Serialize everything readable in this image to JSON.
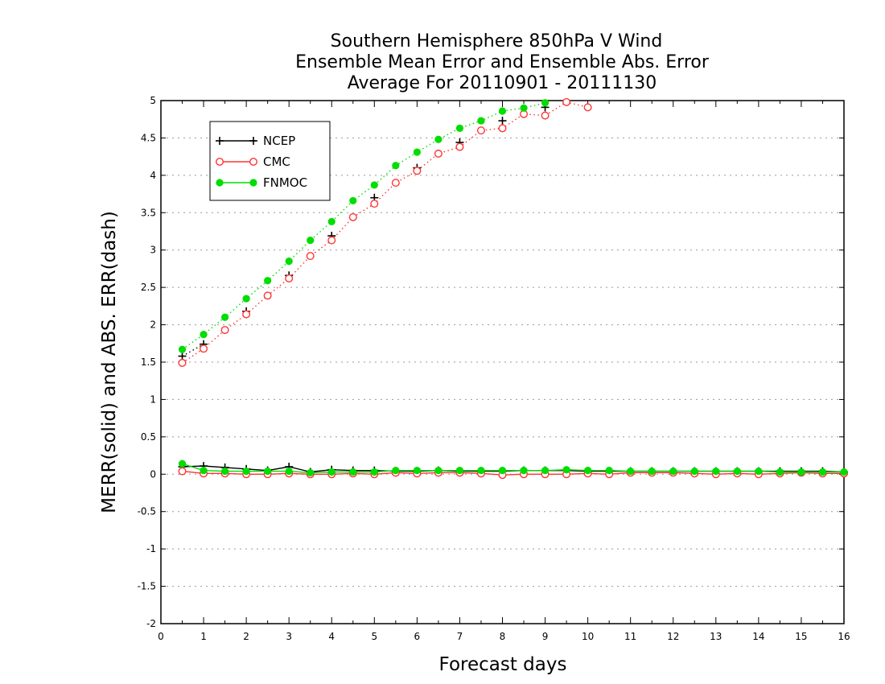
{
  "chart_data": {
    "type": "line",
    "title_lines": [
      "Southern Hemisphere 850hPa V Wind",
      "Ensemble Mean Error and Ensemble Abs. Error",
      "Average For 20110901 - 20111130"
    ],
    "xlabel": "Forecast days",
    "ylabel": "MERR(solid) and ABS. ERR(dash)",
    "xlim": [
      0,
      16
    ],
    "ylim": [
      -2,
      5
    ],
    "x_ticks": [
      "0",
      "1",
      "2",
      "3",
      "4",
      "5",
      "6",
      "7",
      "8",
      "9",
      "10",
      "11",
      "12",
      "13",
      "14",
      "15",
      "16"
    ],
    "y_ticks": [
      "5",
      "4.5",
      "4",
      "3.5",
      "3",
      "2.5",
      "2",
      "1.5",
      "1",
      "0.5",
      "0",
      "-0.5",
      "-1",
      "-1.5",
      "-2"
    ],
    "grid": true,
    "legend_position": "top-left",
    "x": [
      0.5,
      1,
      1.5,
      2,
      2.5,
      3,
      3.5,
      4,
      4.5,
      5,
      5.5,
      6,
      6.5,
      7,
      7.5,
      8,
      8.5,
      9,
      9.5,
      10,
      10.5,
      11,
      11.5,
      12,
      12.5,
      13,
      13.5,
      14,
      14.5,
      15,
      15.5,
      16
    ],
    "series": [
      {
        "name": "NCEP",
        "color": "#000000",
        "marker": "plus",
        "merr": [
          0.1,
          0.11,
          0.09,
          0.07,
          0.05,
          0.1,
          0.03,
          0.06,
          0.05,
          0.05,
          0.04,
          0.04,
          0.05,
          0.04,
          0.04,
          0.04,
          0.05,
          0.05,
          0.05,
          0.04,
          0.04,
          0.04,
          0.04,
          0.04,
          0.04,
          0.04,
          0.04,
          0.04,
          0.04,
          0.04,
          0.04,
          0.03
        ],
        "abs_err": [
          1.58,
          1.74,
          null,
          2.18,
          null,
          2.66,
          null,
          3.19,
          null,
          3.7,
          null,
          4.1,
          null,
          4.44,
          null,
          4.73,
          null,
          4.91,
          null,
          null,
          null,
          null,
          null,
          null,
          null,
          null,
          null,
          null,
          null,
          null,
          null,
          null
        ]
      },
      {
        "name": "CMC",
        "color": "#ff3333",
        "marker": "circle",
        "merr": [
          0.04,
          0.01,
          0.01,
          0.0,
          0.0,
          0.01,
          0.0,
          0.0,
          0.01,
          0.0,
          0.02,
          0.01,
          0.02,
          0.02,
          0.01,
          -0.01,
          0.0,
          0.0,
          0.0,
          0.01,
          0.0,
          0.02,
          0.02,
          0.02,
          0.01,
          0.0,
          0.01,
          0.0,
          0.01,
          0.02,
          0.01,
          0.01
        ],
        "abs_err": [
          1.49,
          1.68,
          1.93,
          2.14,
          2.39,
          2.62,
          2.92,
          3.13,
          3.44,
          3.62,
          3.9,
          4.06,
          4.29,
          4.38,
          4.6,
          4.63,
          4.82,
          4.8,
          4.98,
          4.91,
          null,
          null,
          null,
          null,
          null,
          null,
          null,
          null,
          null,
          null,
          null,
          null
        ]
      },
      {
        "name": "FNMOC",
        "color": "#00dd00",
        "marker": "dot",
        "merr": [
          0.14,
          0.05,
          0.04,
          0.04,
          0.04,
          0.04,
          0.02,
          0.03,
          0.03,
          0.03,
          0.05,
          0.05,
          0.05,
          0.05,
          0.05,
          0.05,
          0.05,
          0.05,
          0.06,
          0.05,
          0.05,
          0.04,
          0.04,
          0.04,
          0.04,
          0.04,
          0.04,
          0.04,
          0.03,
          0.03,
          0.03,
          0.03
        ],
        "abs_err": [
          1.67,
          1.87,
          2.1,
          2.35,
          2.59,
          2.85,
          3.13,
          3.38,
          3.66,
          3.87,
          4.13,
          4.31,
          4.48,
          4.63,
          4.73,
          4.86,
          4.9,
          4.97,
          null,
          null,
          null,
          null,
          null,
          null,
          null,
          null,
          null,
          null,
          null,
          null,
          null,
          null
        ]
      }
    ]
  }
}
